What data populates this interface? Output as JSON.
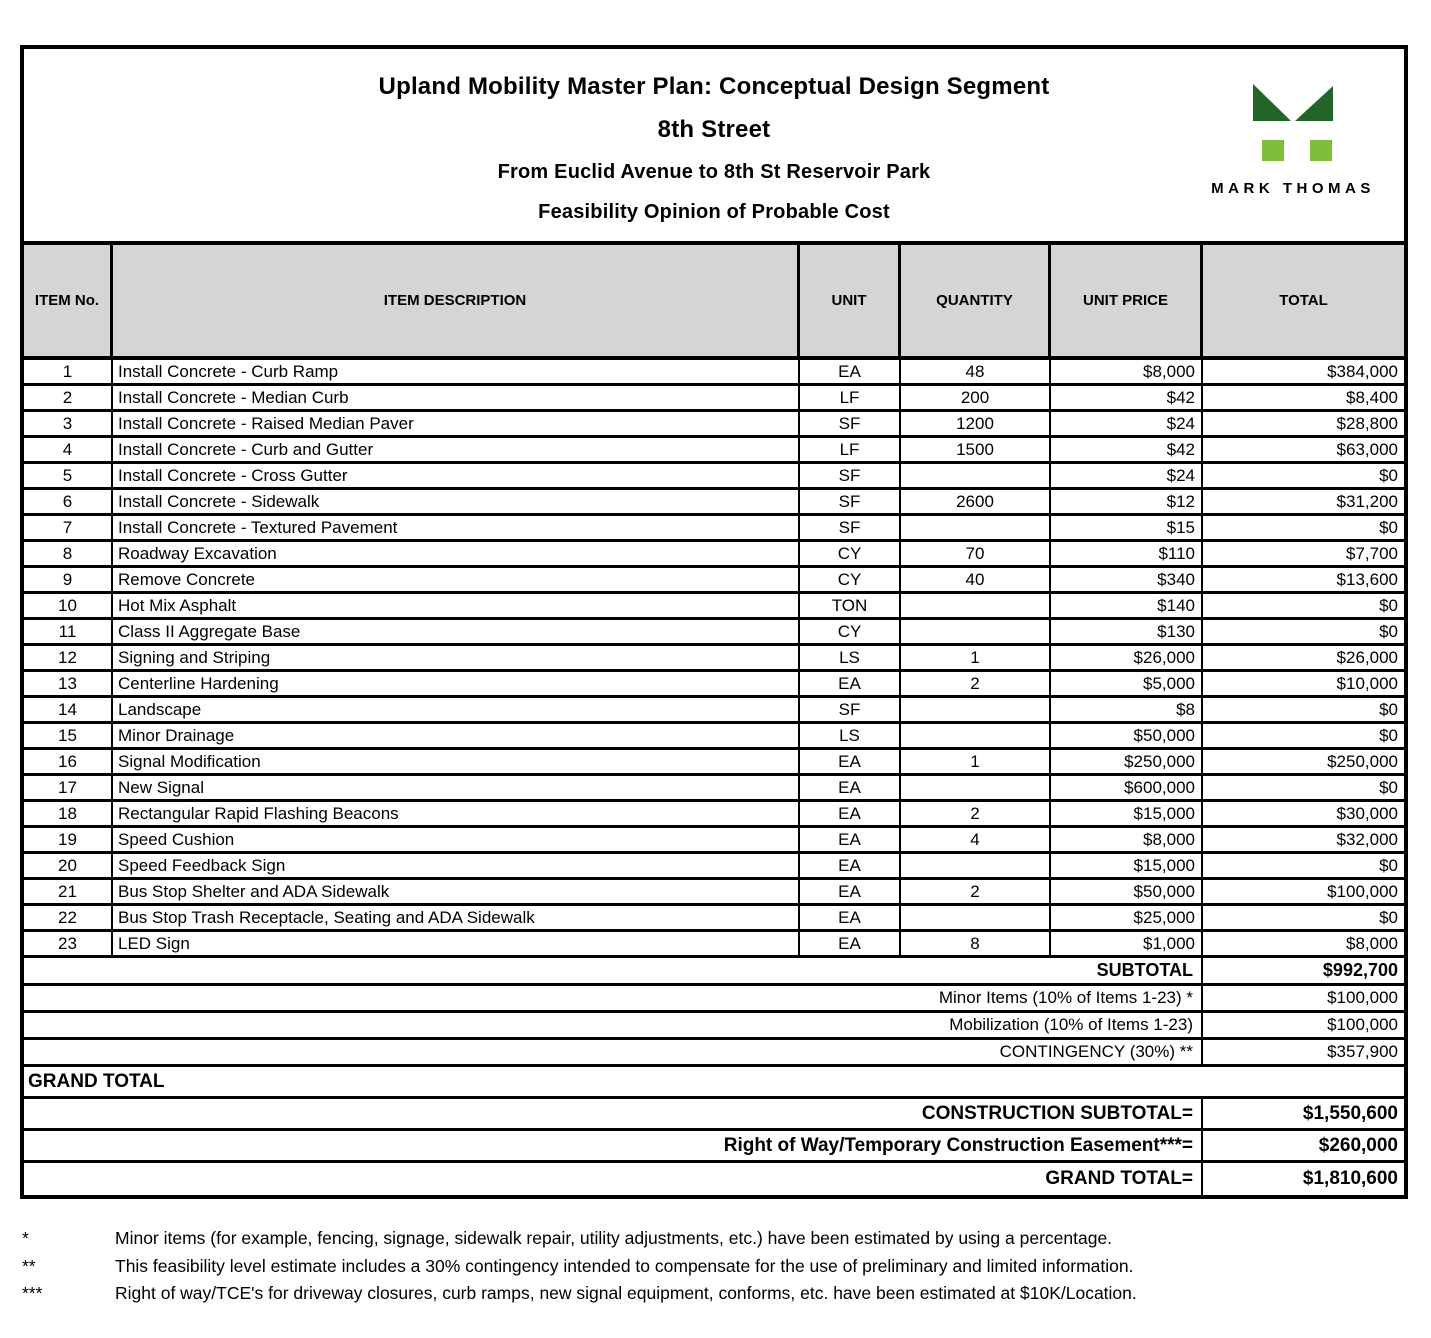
{
  "header": {
    "title_lines": [
      "Upland Mobility Master Plan: Conceptual Design Segment",
      "8th Street",
      "From Euclid Avenue to 8th St Reservoir Park",
      "Feasibility Opinion of Probable Cost"
    ],
    "logo": {
      "brand": "MARK THOMAS",
      "dark_green": "#236428",
      "light_green": "#7dbe3c"
    }
  },
  "table": {
    "columns": [
      "ITEM No.",
      "ITEM DESCRIPTION",
      "UNIT",
      "QUANTITY",
      "UNIT PRICE",
      "TOTAL"
    ],
    "rows": [
      {
        "no": "1",
        "desc": "Install Concrete - Curb Ramp",
        "unit": "EA",
        "qty": "48",
        "unit_price": "$8,000",
        "total": "$384,000"
      },
      {
        "no": "2",
        "desc": "Install Concrete - Median Curb",
        "unit": "LF",
        "qty": "200",
        "unit_price": "$42",
        "total": "$8,400"
      },
      {
        "no": "3",
        "desc": "Install Concrete - Raised Median Paver",
        "unit": "SF",
        "qty": "1200",
        "unit_price": "$24",
        "total": "$28,800"
      },
      {
        "no": "4",
        "desc": "Install Concrete - Curb and Gutter",
        "unit": "LF",
        "qty": "1500",
        "unit_price": "$42",
        "total": "$63,000"
      },
      {
        "no": "5",
        "desc": "Install Concrete - Cross Gutter",
        "unit": "SF",
        "qty": "",
        "unit_price": "$24",
        "total": "$0"
      },
      {
        "no": "6",
        "desc": "Install Concrete - Sidewalk",
        "unit": "SF",
        "qty": "2600",
        "unit_price": "$12",
        "total": "$31,200"
      },
      {
        "no": "7",
        "desc": "Install Concrete - Textured Pavement",
        "unit": "SF",
        "qty": "",
        "unit_price": "$15",
        "total": "$0"
      },
      {
        "no": "8",
        "desc": "Roadway Excavation",
        "unit": "CY",
        "qty": "70",
        "unit_price": "$110",
        "total": "$7,700"
      },
      {
        "no": "9",
        "desc": "Remove Concrete",
        "unit": "CY",
        "qty": "40",
        "unit_price": "$340",
        "total": "$13,600"
      },
      {
        "no": "10",
        "desc": "Hot Mix Asphalt",
        "unit": "TON",
        "qty": "",
        "unit_price": "$140",
        "total": "$0"
      },
      {
        "no": "11",
        "desc": "Class II Aggregate Base",
        "unit": "CY",
        "qty": "",
        "unit_price": "$130",
        "total": "$0"
      },
      {
        "no": "12",
        "desc": "Signing and Striping",
        "unit": "LS",
        "qty": "1",
        "unit_price": "$26,000",
        "total": "$26,000"
      },
      {
        "no": "13",
        "desc": "Centerline Hardening",
        "unit": "EA",
        "qty": "2",
        "unit_price": "$5,000",
        "total": "$10,000"
      },
      {
        "no": "14",
        "desc": "Landscape",
        "unit": "SF",
        "qty": "",
        "unit_price": "$8",
        "total": "$0"
      },
      {
        "no": "15",
        "desc": "Minor Drainage",
        "unit": "LS",
        "qty": "",
        "unit_price": "$50,000",
        "total": "$0"
      },
      {
        "no": "16",
        "desc": "Signal Modification",
        "unit": "EA",
        "qty": "1",
        "unit_price": "$250,000",
        "total": "$250,000"
      },
      {
        "no": "17",
        "desc": "New Signal",
        "unit": "EA",
        "qty": "",
        "unit_price": "$600,000",
        "total": "$0"
      },
      {
        "no": "18",
        "desc": "Rectangular Rapid Flashing Beacons",
        "unit": "EA",
        "qty": "2",
        "unit_price": "$15,000",
        "total": "$30,000"
      },
      {
        "no": "19",
        "desc": "Speed Cushion",
        "unit": "EA",
        "qty": "4",
        "unit_price": "$8,000",
        "total": "$32,000"
      },
      {
        "no": "20",
        "desc": "Speed Feedback Sign",
        "unit": "EA",
        "qty": "",
        "unit_price": "$15,000",
        "total": "$0"
      },
      {
        "no": "21",
        "desc": "Bus Stop Shelter and ADA Sidewalk",
        "unit": "EA",
        "qty": "2",
        "unit_price": "$50,000",
        "total": "$100,000"
      },
      {
        "no": "22",
        "desc": "Bus Stop Trash Receptacle, Seating and ADA Sidewalk",
        "unit": "EA",
        "qty": "",
        "unit_price": "$25,000",
        "total": "$0"
      },
      {
        "no": "23",
        "desc": "LED Sign",
        "unit": "EA",
        "qty": "8",
        "unit_price": "$1,000",
        "total": "$8,000"
      }
    ],
    "summary": {
      "subtotal_label": "SUBTOTAL",
      "subtotal_value": "$992,700",
      "adjustments": [
        {
          "label": "Minor Items (10% of Items 1-23) *",
          "value": "$100,000"
        },
        {
          "label": "Mobilization (10% of Items 1-23)",
          "value": "$100,000"
        },
        {
          "label": "CONTINGENCY (30%) **",
          "value": "$357,900"
        }
      ],
      "grand_total_section_label": "GRAND TOTAL",
      "totals": [
        {
          "label": "CONSTRUCTION SUBTOTAL=",
          "value": "$1,550,600"
        },
        {
          "label": "Right of Way/Temporary Construction Easement***=",
          "value": "$260,000"
        },
        {
          "label": "GRAND TOTAL=",
          "value": "$1,810,600"
        }
      ]
    }
  },
  "footnotes": [
    {
      "marker": "*",
      "text": "Minor items (for example, fencing, signage, sidewalk repair, utility adjustments, etc.) have been estimated by using a percentage."
    },
    {
      "marker": "**",
      "text": "This feasibility level estimate includes a 30% contingency intended to compensate for the use of preliminary and limited information."
    },
    {
      "marker": "***",
      "text": "Right of way/TCE's for driveway closures, curb ramps, new signal equipment, conforms, etc. have been estimated at $10K/Location."
    }
  ]
}
